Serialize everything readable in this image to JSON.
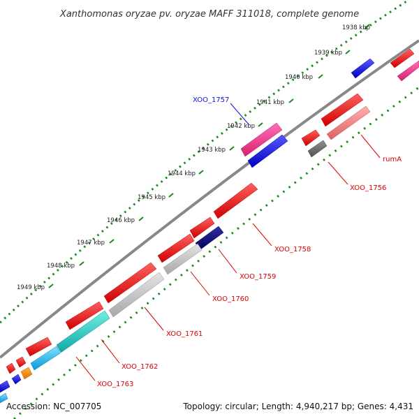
{
  "title": "Xanthomonas oryzae pv. oryzae MAFF 311018, complete genome",
  "footer": {
    "accession": "Accession: NC_007705",
    "topology": "Topology: circular; Length: 4,940,217 bp; Genes: 4,431"
  },
  "scale_labels": [
    "1938 kbp",
    "1939 kbp",
    "1940 kbp",
    "1941 kbp",
    "1942 kbp",
    "1943 kbp",
    "1944 kbp",
    "1945 kbp",
    "1946 kbp",
    "1947 kbp",
    "1948 kbp",
    "1949 kbp"
  ],
  "gene_labels": [
    "XOO_1757",
    "rumA",
    "XOO_1756",
    "XOO_1758",
    "XOO_1759",
    "XOO_1760",
    "XOO_1761",
    "XOO_1762",
    "XOO_1763"
  ],
  "colors": {
    "backbone": "#888888",
    "tick": "#1a8a1a",
    "red": "#ff1010",
    "pink": "#ff2d8a",
    "blue": "#1010ee",
    "navy": "#0a0a80",
    "gray": "#c0c0c0",
    "darkgray": "#666666",
    "salmon": "#f08080",
    "teal": "#1fc8c8",
    "cyan": "#22b8ee",
    "orange": "#ff8800",
    "label_blue": "#1010ee",
    "label_red": "#dd0000"
  }
}
